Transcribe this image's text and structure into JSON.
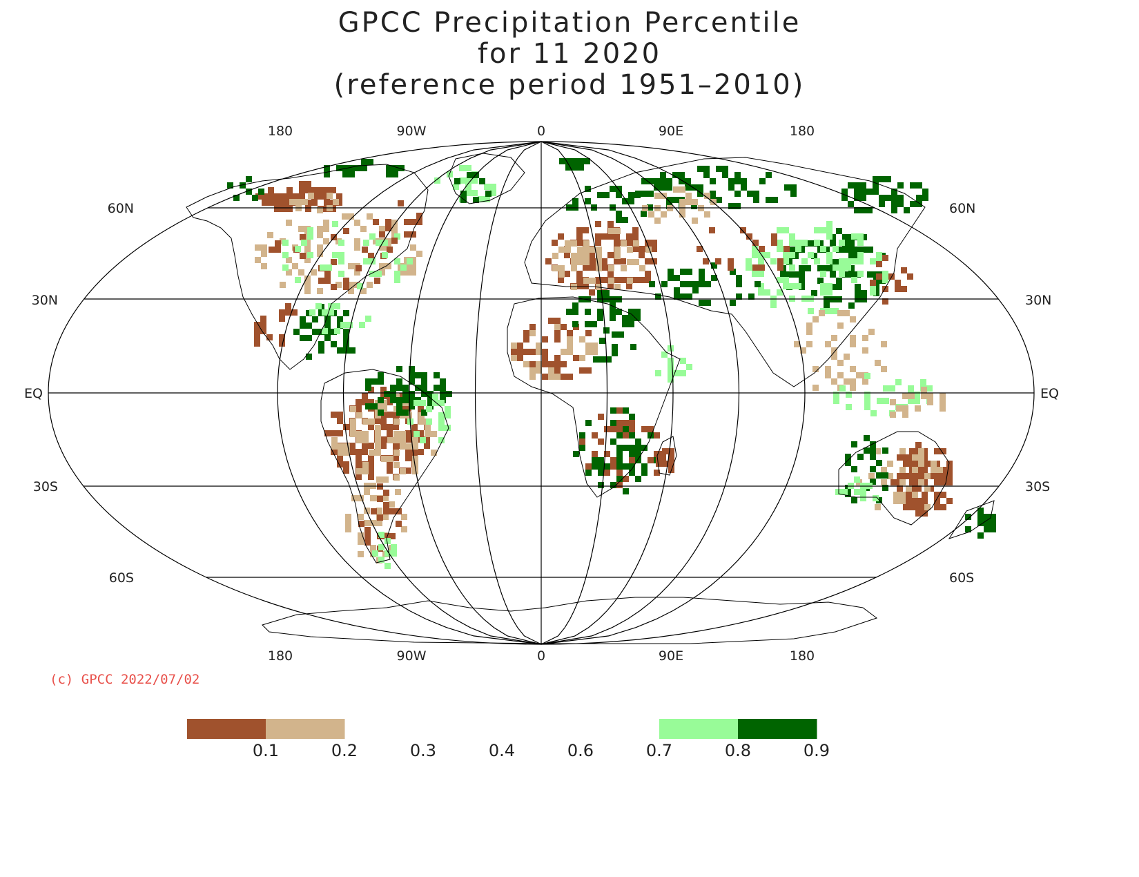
{
  "title": {
    "line1": "GPCC Precipitation Percentile",
    "line2": "for 11 2020",
    "line3": "(reference period 1951–2010)"
  },
  "longitude_labels": [
    "180",
    "90W",
    "0",
    "90E",
    "180"
  ],
  "latitude_labels": [
    "60N",
    "30N",
    "EQ",
    "30S",
    "60S"
  ],
  "copyright": "(c) GPCC 2022/07/02",
  "colors": {
    "very_dry": "#a0522d",
    "dry": "#d2b48c",
    "wet": "#98fb98",
    "very_wet": "#006400",
    "copyright": "#e8504a"
  },
  "legend": {
    "ticks": [
      "0.1",
      "0.2",
      "0.3",
      "0.4",
      "0.6",
      "0.7",
      "0.8",
      "0.9"
    ],
    "bins": [
      "very_dry",
      "dry",
      "none",
      "none",
      "none",
      "none",
      "wet",
      "very_wet"
    ]
  }
}
